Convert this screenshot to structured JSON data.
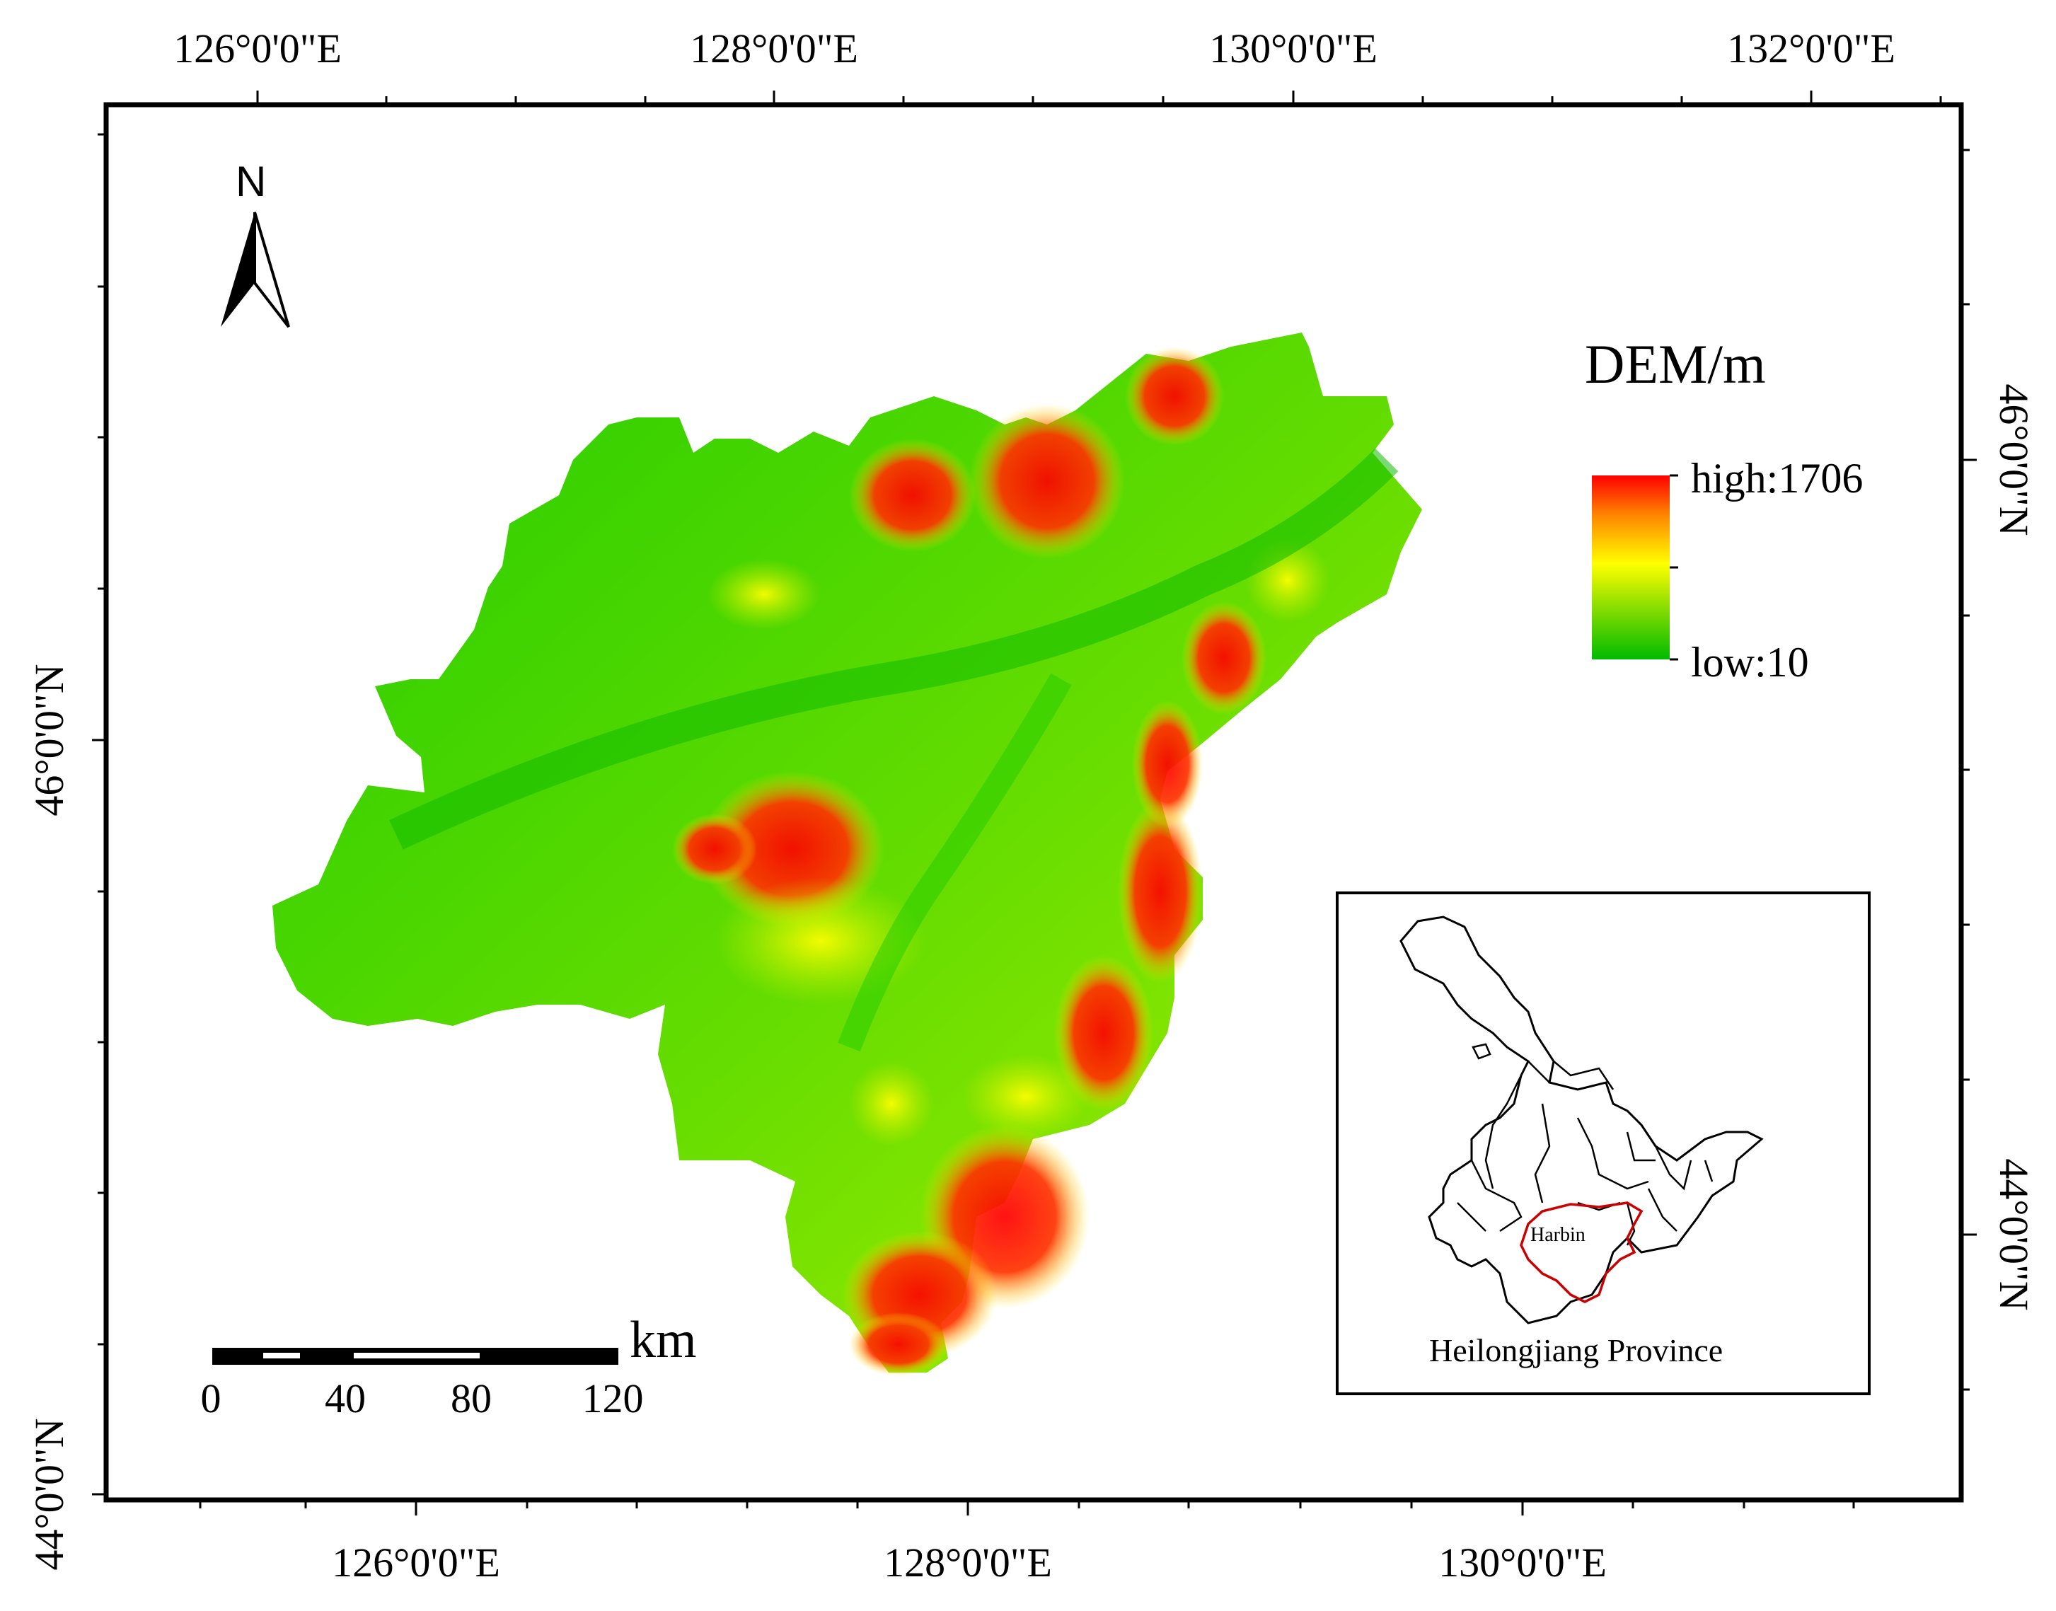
{
  "map": {
    "top_lon_labels": [
      "126°0'0\"E",
      "128°0'0\"E",
      "130°0'0\"E",
      "132°0'0\"E"
    ],
    "bottom_lon_labels": [
      "126°0'0\"E",
      "128°0'0\"E",
      "130°0'0\"E"
    ],
    "left_lat_labels": [
      "46°0'0\"N",
      "44°0'0\"N"
    ],
    "right_lat_labels": [
      "46°0'0\"N",
      "44°0'0\"N"
    ],
    "north_arrow": {
      "letter": "N",
      "icon": "north-arrow-icon"
    }
  },
  "legend": {
    "title": "DEM/m",
    "high_label": "high:1706",
    "low_label": "low:10",
    "colors": {
      "high": "#ff0000",
      "mid": "#ffff00",
      "low": "#00cc00"
    }
  },
  "scale_bar": {
    "unit": "km",
    "ticks": [
      "0",
      "40",
      "80",
      "120"
    ]
  },
  "inset": {
    "title": "Heilongjiang Province",
    "highlight_label": "Harbin",
    "highlight_color": "#cc0000"
  }
}
